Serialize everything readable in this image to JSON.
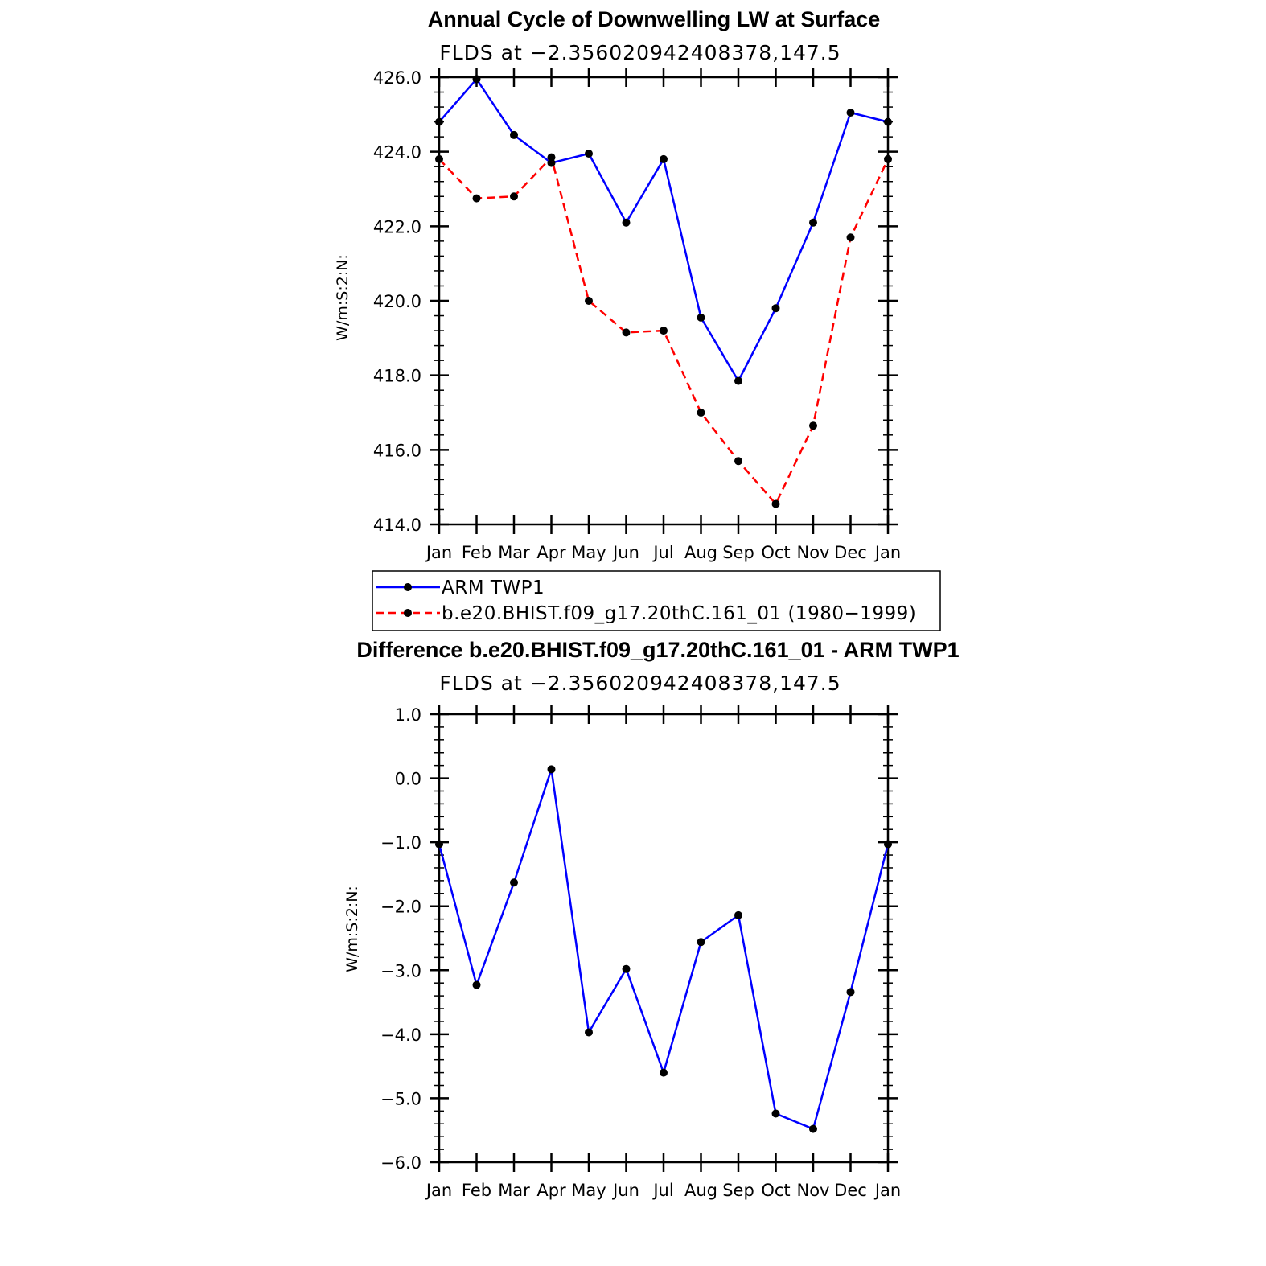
{
  "chart_data": [
    {
      "type": "line",
      "title": "Annual Cycle of Downwelling LW at Surface",
      "subtitle": "FLDS at −2.356020942408378,147.5",
      "ylabel": "W/m:S:2:N:",
      "xlabel": "",
      "categories": [
        "Jan",
        "Feb",
        "Mar",
        "Apr",
        "May",
        "Jun",
        "Jul",
        "Aug",
        "Sep",
        "Oct",
        "Nov",
        "Dec",
        "Jan"
      ],
      "ylim": [
        414.0,
        426.0
      ],
      "yticks": [
        "414.0",
        "416.0",
        "418.0",
        "420.0",
        "422.0",
        "424.0",
        "426.0"
      ],
      "series": [
        {
          "name": "ARM TWP1",
          "color": "#0000ff",
          "style": "solid",
          "values": [
            424.8,
            425.95,
            424.45,
            423.7,
            423.95,
            422.1,
            423.8,
            419.55,
            417.85,
            419.8,
            422.1,
            425.05,
            424.8
          ]
        },
        {
          "name": "b.e20.BHIST.f09_g17.20thC.161_01 (1980−1999)",
          "color": "#ff0000",
          "style": "dashed",
          "values": [
            423.8,
            422.75,
            422.8,
            423.85,
            420.0,
            419.15,
            419.2,
            417.0,
            415.7,
            414.55,
            416.65,
            421.7,
            423.8
          ]
        }
      ],
      "legend_position": "bottom"
    },
    {
      "type": "line",
      "title": "Difference b.e20.BHIST.f09_g17.20thC.161_01 - ARM TWP1",
      "subtitle": "FLDS at −2.356020942408378,147.5",
      "ylabel": "W/m:S:2:N:",
      "xlabel": "",
      "categories": [
        "Jan",
        "Feb",
        "Mar",
        "Apr",
        "May",
        "Jun",
        "Jul",
        "Aug",
        "Sep",
        "Oct",
        "Nov",
        "Dec",
        "Jan"
      ],
      "ylim": [
        -6.0,
        1.0
      ],
      "yticks": [
        "−6.0",
        "−5.0",
        "−4.0",
        "−3.0",
        "−2.0",
        "−1.0",
        "0.0",
        "1.0"
      ],
      "series": [
        {
          "name": "Difference",
          "color": "#0000ff",
          "style": "solid",
          "values": [
            -1.03,
            -3.23,
            -1.63,
            0.14,
            -3.97,
            -2.98,
            -4.6,
            -2.56,
            -2.14,
            -5.24,
            -5.48,
            -3.34,
            -1.03
          ]
        }
      ]
    }
  ]
}
